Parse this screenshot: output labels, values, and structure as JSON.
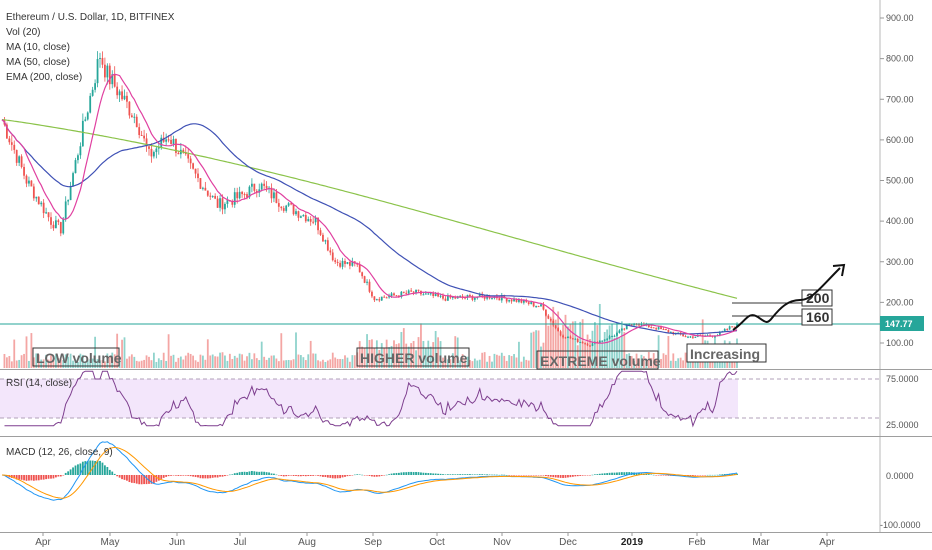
{
  "header": {
    "title": "Ethereum / U.S. Dollar, 1D, BITFINEX",
    "indicators": [
      "Vol (20)",
      "MA (10, close)",
      "MA (50, close)",
      "EMA (200, close)"
    ]
  },
  "price_axis": {
    "ticks": [
      "900.00",
      "800.00",
      "700.00",
      "600.00",
      "500.00",
      "400.00",
      "300.00",
      "200.00",
      "100.00"
    ]
  },
  "current_price": "147.77",
  "annotations": {
    "low_volume": "LOW volume",
    "higher_volume": "HIGHER volume",
    "extreme_volume": "EXTREME volume",
    "increasing": "Increasing",
    "target_200": "200",
    "target_160": "160"
  },
  "rsi": {
    "label": "RSI (14, close)",
    "ticks": [
      "75.0000",
      "25.0000"
    ]
  },
  "macd": {
    "label": "MACD (12, 26, close, 9)",
    "ticks": [
      "0.0000",
      "-100.0000"
    ]
  },
  "time_axis": {
    "labels": [
      "Apr",
      "May",
      "Jun",
      "Jul",
      "Aug",
      "Sep",
      "Oct",
      "Nov",
      "Dec",
      "2019",
      "Feb",
      "Mar",
      "Apr"
    ]
  },
  "colors": {
    "up": "#26a69a",
    "down": "#ef5350",
    "ma10": "#e040a0",
    "ma50": "#3f51b5",
    "ema200": "#8bc34a",
    "rsi_line": "#7e3f8f",
    "rsi_band": "#f3e6fb",
    "macd_line": "#2196f3",
    "signal_line": "#ff9800",
    "price_line": "#26a69a"
  },
  "chart_data": {
    "type": "candlestick",
    "title": "Ethereum / U.S. Dollar, 1D, BITFINEX",
    "months": [
      "Apr",
      "May",
      "Jun",
      "Jul",
      "Aug",
      "Sep",
      "Oct",
      "Nov",
      "Dec",
      "2019",
      "Feb",
      "Mar",
      "Apr"
    ],
    "ylim": [
      50,
      950
    ],
    "price_keypoints": [
      {
        "day": 0,
        "price": 650
      },
      {
        "day": 10,
        "price": 500
      },
      {
        "day": 20,
        "price": 400
      },
      {
        "day": 24,
        "price": 380
      },
      {
        "day": 35,
        "price": 680
      },
      {
        "day": 40,
        "price": 810
      },
      {
        "day": 43,
        "price": 760
      },
      {
        "day": 55,
        "price": 650
      },
      {
        "day": 60,
        "price": 560
      },
      {
        "day": 68,
        "price": 610
      },
      {
        "day": 78,
        "price": 520
      },
      {
        "day": 88,
        "price": 440
      },
      {
        "day": 97,
        "price": 460
      },
      {
        "day": 105,
        "price": 490
      },
      {
        "day": 115,
        "price": 440
      },
      {
        "day": 128,
        "price": 400
      },
      {
        "day": 136,
        "price": 300
      },
      {
        "day": 145,
        "price": 290
      },
      {
        "day": 152,
        "price": 210
      },
      {
        "day": 158,
        "price": 215
      },
      {
        "day": 168,
        "price": 225
      },
      {
        "day": 180,
        "price": 210
      },
      {
        "day": 200,
        "price": 215
      },
      {
        "day": 210,
        "price": 205
      },
      {
        "day": 220,
        "price": 190
      },
      {
        "day": 228,
        "price": 120
      },
      {
        "day": 240,
        "price": 95
      },
      {
        "day": 250,
        "price": 120
      },
      {
        "day": 258,
        "price": 150
      },
      {
        "day": 265,
        "price": 140
      },
      {
        "day": 280,
        "price": 115
      },
      {
        "day": 292,
        "price": 120
      },
      {
        "day": 300,
        "price": 148
      }
    ],
    "current": 147.77,
    "projection_targets": [
      160,
      200,
      290
    ]
  }
}
